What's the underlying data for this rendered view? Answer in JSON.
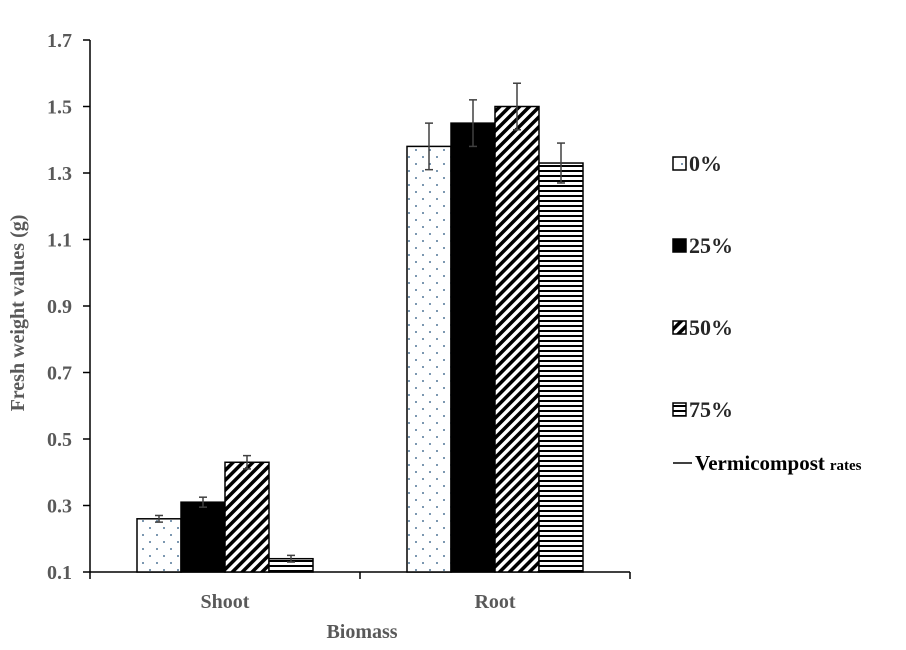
{
  "chart_data": {
    "type": "bar",
    "title": "",
    "xlabel": "Biomass",
    "ylabel": "Fresh weight values (g)",
    "categories": [
      "Shoot",
      "Root"
    ],
    "ylim": [
      0.1,
      1.7
    ],
    "yticks": [
      "0.1",
      "0.3",
      "0.5",
      "0.7",
      "0.9",
      "1.1",
      "1.3",
      "1.5",
      "1.7"
    ],
    "grid": false,
    "legend_position": "right",
    "legend_note_main": "Vermicompost",
    "legend_note_sub": "rates",
    "series": [
      {
        "name": "0%",
        "pattern": "dots",
        "values": [
          0.26,
          1.38
        ],
        "errors": [
          0.01,
          0.07
        ]
      },
      {
        "name": "25%",
        "pattern": "solid",
        "values": [
          0.31,
          1.45
        ],
        "errors": [
          0.015,
          0.07
        ]
      },
      {
        "name": "50%",
        "pattern": "diagonal",
        "values": [
          0.43,
          1.5
        ],
        "errors": [
          0.02,
          0.07
        ]
      },
      {
        "name": "75%",
        "pattern": "horizontal",
        "values": [
          0.14,
          1.33
        ],
        "errors": [
          0.01,
          0.06
        ]
      }
    ],
    "colors": {
      "axis": "#000000",
      "bar_outline": "#000000",
      "fill_dark": "#000000",
      "dots": "#1f4e79",
      "error": "#404040"
    }
  }
}
